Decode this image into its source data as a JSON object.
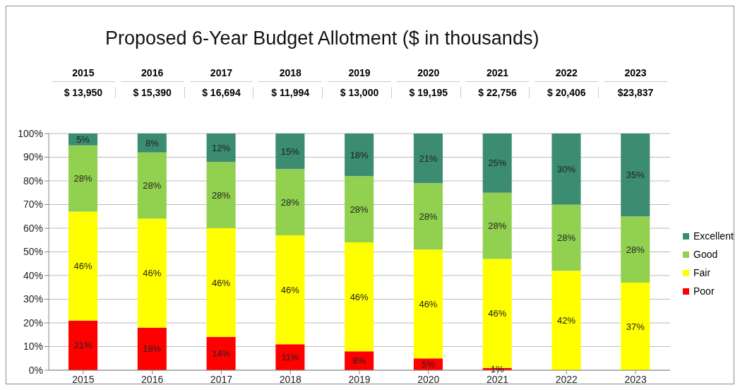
{
  "chart_data": {
    "type": "bar",
    "title": "Proposed 6-Year Budget Allotment ($ in thousands)",
    "categories": [
      "2015",
      "2016",
      "2017",
      "2018",
      "2019",
      "2020",
      "2021",
      "2022",
      "2023"
    ],
    "annotations": [
      "$ 13,950",
      "$ 15,390",
      "$ 16,694",
      "$ 11,994",
      "$ 13,000",
      "$ 19,195",
      "$ 22,756",
      "$ 20,406",
      "$23,837"
    ],
    "stacked": true,
    "legend": "right",
    "grid": "y",
    "ylim": [
      0,
      100
    ],
    "yticks": [
      {
        "value": 0,
        "label": "0%"
      },
      {
        "value": 10,
        "label": "10%"
      },
      {
        "value": 20,
        "label": "20%"
      },
      {
        "value": 30,
        "label": "30%"
      },
      {
        "value": 40,
        "label": "40%"
      },
      {
        "value": 50,
        "label": "50%"
      },
      {
        "value": 60,
        "label": "60%"
      },
      {
        "value": 70,
        "label": "70%"
      },
      {
        "value": 80,
        "label": "80%"
      },
      {
        "value": 90,
        "label": "90%"
      },
      {
        "value": 100,
        "label": "100%"
      }
    ],
    "series": [
      {
        "name": "Poor",
        "color": "#ff0000",
        "values": [
          21,
          18,
          14,
          11,
          8,
          5,
          1,
          0,
          0
        ],
        "value_labels": [
          "21%",
          "18%",
          "14%",
          "11%",
          "8%",
          "5%",
          "1%",
          null,
          null
        ]
      },
      {
        "name": "Fair",
        "color": "#ffff00",
        "values": [
          46,
          46,
          46,
          46,
          46,
          46,
          46,
          42,
          37
        ],
        "value_labels": [
          "46%",
          "46%",
          "46%",
          "46%",
          "46%",
          "46%",
          "46%",
          "42%",
          "37%"
        ]
      },
      {
        "name": "Good",
        "color": "#92d050",
        "values": [
          28,
          28,
          28,
          28,
          28,
          28,
          28,
          28,
          28
        ],
        "value_labels": [
          "28%",
          "28%",
          "28%",
          "28%",
          "28%",
          "28%",
          "28%",
          "28%",
          "28%"
        ]
      },
      {
        "name": "Excellent",
        "color": "#3b8c70",
        "values": [
          5,
          8,
          12,
          15,
          18,
          21,
          25,
          30,
          35
        ],
        "value_labels": [
          "5%",
          "8%",
          "12%",
          "15%",
          "18%",
          "21%",
          "25%",
          "30%",
          "35%"
        ]
      }
    ]
  }
}
